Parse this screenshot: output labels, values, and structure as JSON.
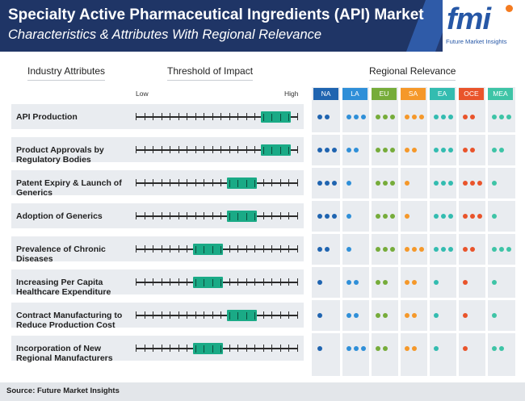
{
  "header": {
    "title": "Specialty Active Pharmaceutical Ingredients (API) Market",
    "subtitle": "Characteristics & Attributes With Regional Relevance"
  },
  "logo": {
    "mark": "fmi",
    "text": "Future Market Insights"
  },
  "columns": {
    "attributes": "Industry Attributes",
    "threshold": "Threshold of Impact",
    "regional": "Regional Relevance"
  },
  "scale": {
    "low": "Low",
    "high": "High"
  },
  "regions": [
    {
      "code": "NA",
      "color": "#1f64b0"
    },
    {
      "code": "LA",
      "color": "#2f8fd8"
    },
    {
      "code": "EU",
      "color": "#76ac3a"
    },
    {
      "code": "SA",
      "color": "#f5982a"
    },
    {
      "code": "EA",
      "color": "#33bcb0"
    },
    {
      "code": "OCE",
      "color": "#e9542b"
    },
    {
      "code": "MEA",
      "color": "#3ec4a6"
    }
  ],
  "chart_data": {
    "type": "table",
    "impact_scale": "Low to High, 1-20 ticks",
    "rows": [
      {
        "label": "API Production",
        "impact_start": 16,
        "impact_end": 19,
        "relevance": [
          2,
          3,
          3,
          3,
          3,
          2,
          3
        ]
      },
      {
        "label": "Product Approvals by Regulatory Bodies",
        "impact_start": 16,
        "impact_end": 19,
        "relevance": [
          3,
          2,
          3,
          2,
          3,
          2,
          2
        ]
      },
      {
        "label": "Patent Expiry & Launch of Generics",
        "impact_start": 12,
        "impact_end": 15,
        "relevance": [
          3,
          1,
          3,
          1,
          3,
          3,
          1
        ]
      },
      {
        "label": "Adoption of Generics",
        "impact_start": 12,
        "impact_end": 15,
        "relevance": [
          3,
          1,
          3,
          1,
          3,
          3,
          1
        ]
      },
      {
        "label": "Prevalence of Chronic Diseases",
        "impact_start": 8,
        "impact_end": 11,
        "relevance": [
          2,
          1,
          3,
          3,
          3,
          2,
          3
        ]
      },
      {
        "label": "Increasing Per Capita Healthcare Expenditure",
        "impact_start": 8,
        "impact_end": 11,
        "relevance": [
          1,
          2,
          2,
          2,
          1,
          1,
          1
        ]
      },
      {
        "label": "Contract Manufacturing to Reduce Production Cost",
        "impact_start": 12,
        "impact_end": 15,
        "relevance": [
          1,
          2,
          2,
          2,
          1,
          1,
          1
        ]
      },
      {
        "label": "Incorporation of New Regional Manufacturers",
        "impact_start": 8,
        "impact_end": 11,
        "relevance": [
          1,
          3,
          2,
          2,
          1,
          1,
          2
        ]
      }
    ]
  },
  "footer": {
    "source": "Source: Future Market Insights"
  }
}
